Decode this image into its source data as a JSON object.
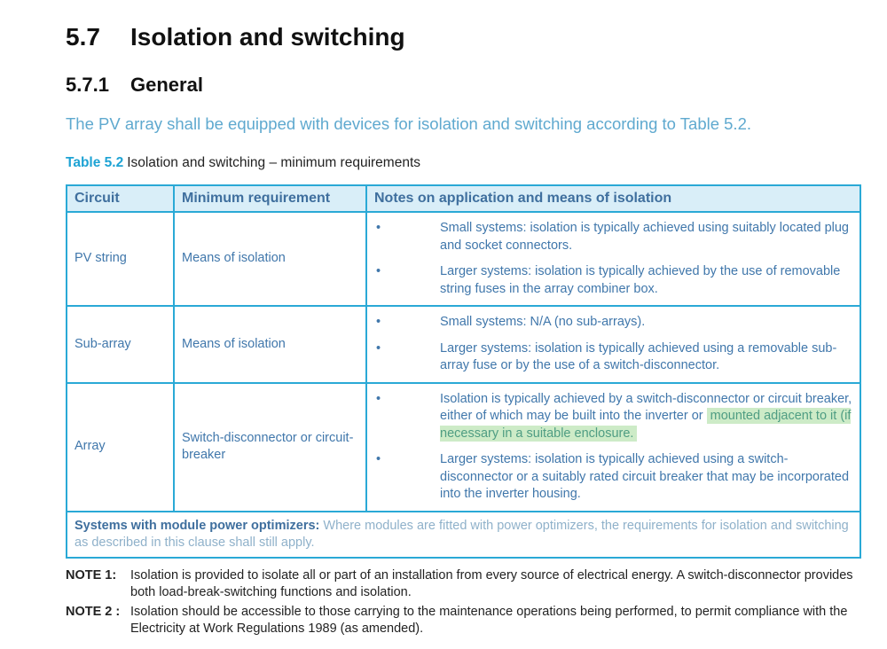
{
  "section": {
    "number": "5.7",
    "title": "Isolation and switching"
  },
  "subsection": {
    "number": "5.7.1",
    "title": "General"
  },
  "intro": "The PV array shall be equipped with devices for isolation and switching according to Table 5.2.",
  "caption": {
    "label": "Table 5.2",
    "text": "Isolation and switching – minimum requirements"
  },
  "table": {
    "headers": [
      "Circuit",
      "Minimum requirement",
      "Notes on application and means of isolation"
    ],
    "rows": [
      {
        "circuit": "PV string",
        "requirement": "Means of isolation",
        "notes": [
          "Small systems: isolation is typically achieved using suitably located plug and socket connectors.",
          "Larger systems: isolation is typically achieved by the use of removable string fuses in the array combiner box."
        ]
      },
      {
        "circuit": "Sub-array",
        "requirement": "Means of isolation",
        "notes": [
          "Small systems: N/A (no sub-arrays).",
          "Larger systems: isolation is typically achieved using a removable sub-array fuse or by the use of a switch-disconnector."
        ]
      },
      {
        "circuit": "Array",
        "requirement": "Switch-disconnector or circuit-breaker",
        "notes": [
          "Isolation is typically achieved by a switch-disconnector or circuit breaker, either of which may be built into the inverter or",
          "Larger systems: isolation is typically achieved using a switch-disconnector or a suitably rated circuit breaker that may be incorporated into the inverter housing."
        ],
        "highlighted": "mounted adjacent to it (if necessary in a suitable enclosure."
      }
    ],
    "footer": {
      "bold": "Systems with module power optimizers:",
      "text": "Where modules are fitted with power optimizers, the requirements for isolation and switching as described in this clause shall still apply."
    }
  },
  "notes": [
    {
      "label": "NOTE 1:",
      "text": "Isolation is provided to isolate all or part of an installation from every source of electrical energy. A switch-disconnector provides both load-break-switching functions and isolation."
    },
    {
      "label": "NOTE 2 :",
      "text": "Isolation should be accessible to those carrying to the maintenance operations being performed, to permit compliance with the Electricity at Work Regulations 1989 (as amended)."
    }
  ],
  "bullet": "•",
  "colors": {
    "accent": "#2aa9d6",
    "highlight": "#cdebc7"
  }
}
